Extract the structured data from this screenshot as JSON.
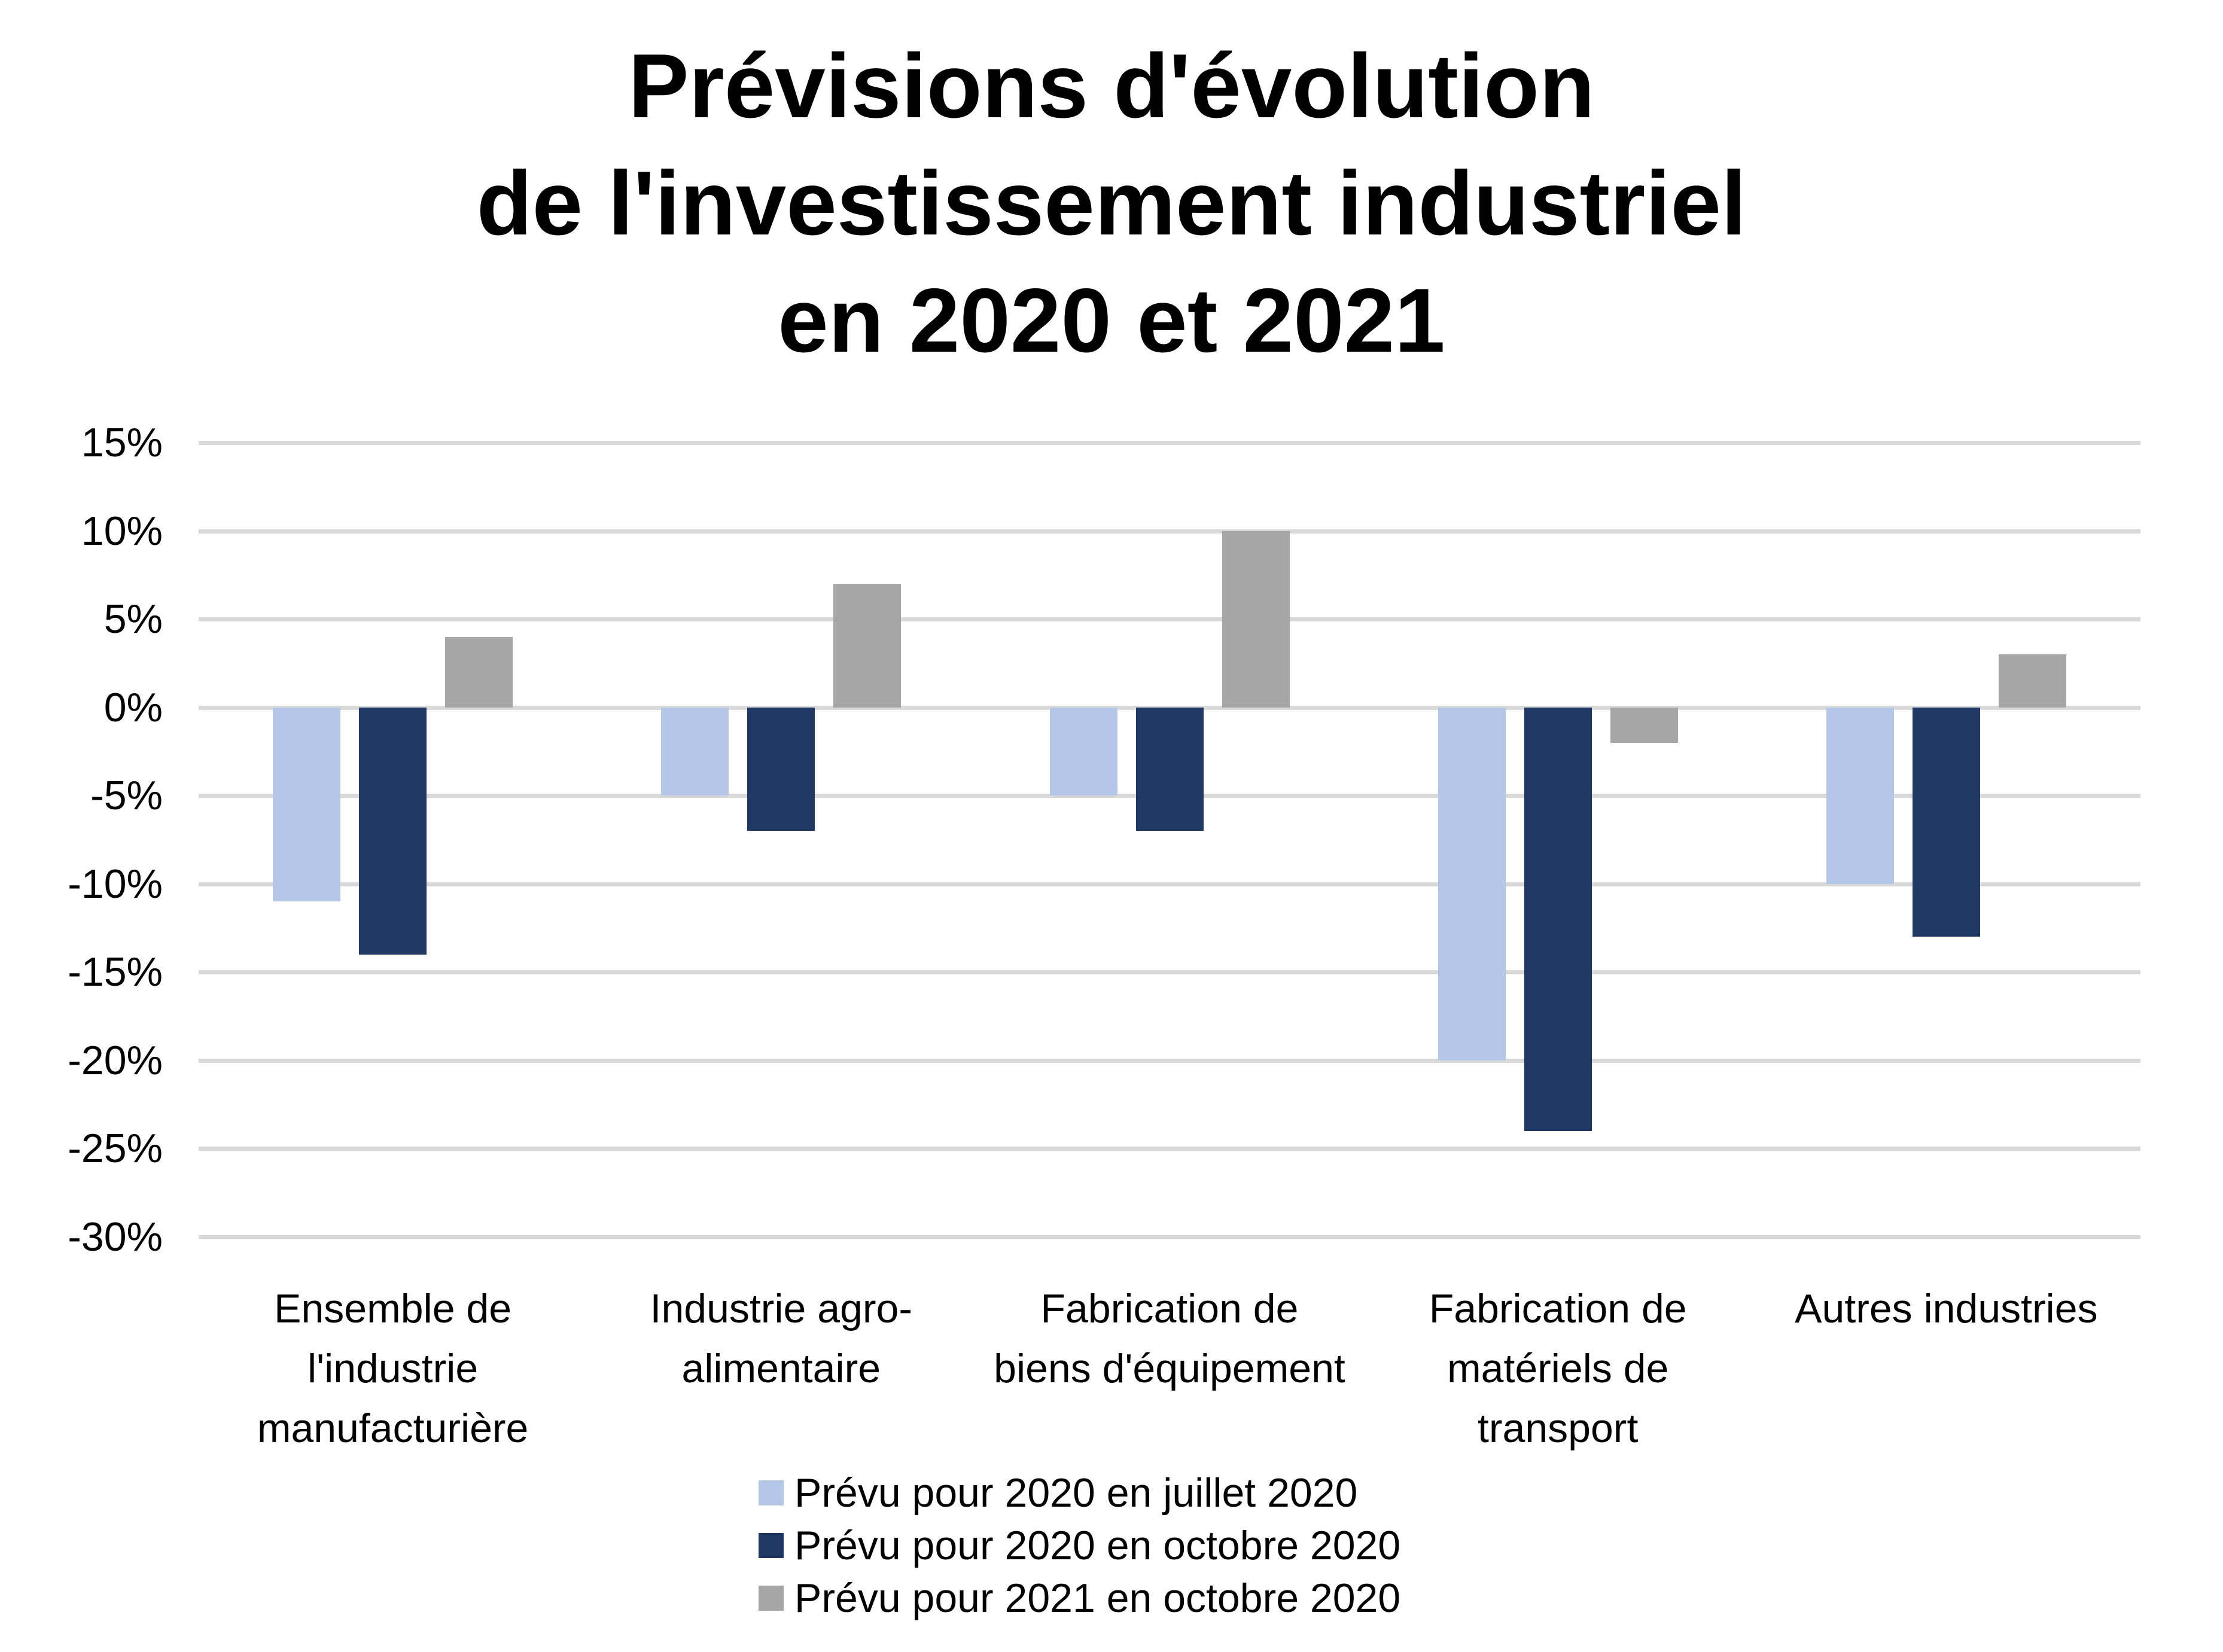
{
  "title": "Prévisions d'évolution\nde l'investissement industriel\nen 2020 et 2021",
  "chart_data": {
    "type": "bar",
    "title": "Prévisions d'évolution de l'investissement industriel en 2020 et 2021",
    "categories": [
      "Ensemble de l'industrie manufacturière",
      "Industrie agro-alimentaire",
      "Fabrication de biens d'équipement",
      "Fabrication de matériels de transport",
      "Autres industries"
    ],
    "categories_display": [
      "Ensemble de\nl'industrie\nmanufacturière",
      "Industrie agro-\nalimentaire",
      "Fabrication de\nbiens d'équipement",
      "Fabrication de\nmatériels de\ntransport",
      "Autres industries"
    ],
    "series": [
      {
        "name": "Prévu pour 2020 en juillet 2020",
        "color": "#b4c7e7",
        "values": [
          -11,
          -5,
          -5,
          -20,
          -10
        ]
      },
      {
        "name": "Prévu pour 2020 en octobre 2020",
        "color": "#1f3864",
        "values": [
          -14,
          -7,
          -7,
          -24,
          -13
        ]
      },
      {
        "name": "Prévu pour 2021 en octobre 2020",
        "color": "#a6a6a6",
        "values": [
          4,
          7,
          10,
          -2,
          3
        ]
      }
    ],
    "unit": "%",
    "ylim": [
      -30,
      15
    ],
    "ytick_step": 5,
    "yticks": [
      "15%",
      "10%",
      "5%",
      "0%",
      "-5%",
      "-10%",
      "-15%",
      "-20%",
      "-25%",
      "-30%"
    ],
    "grid": "horizontal",
    "gridline_color": "#d9d9d9",
    "legend_position": "bottom",
    "xlabel": "",
    "ylabel": ""
  }
}
